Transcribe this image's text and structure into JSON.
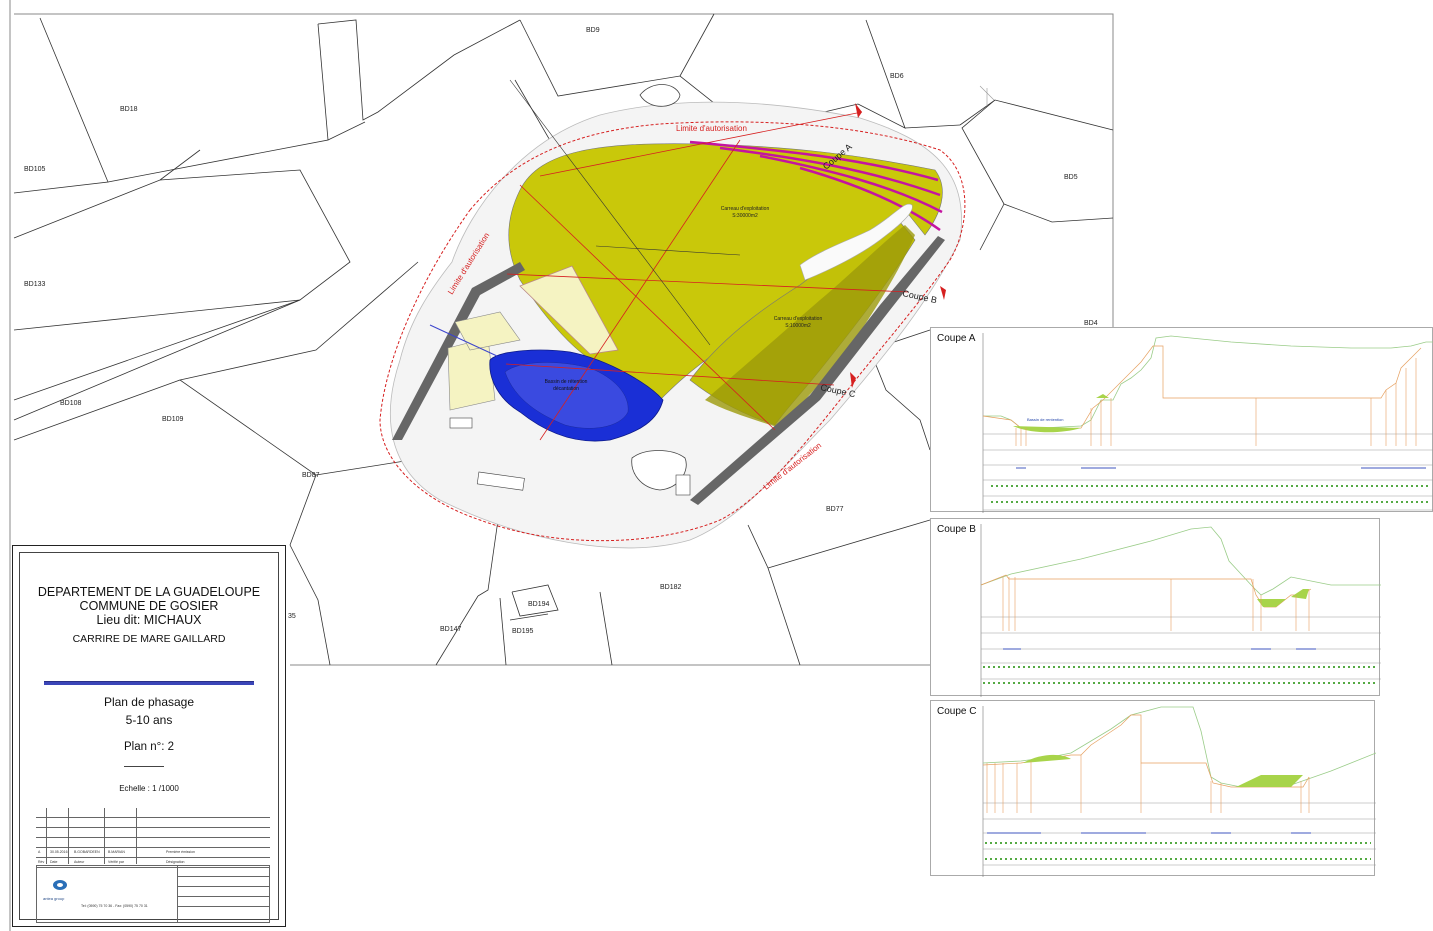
{
  "parcels": [
    "BD9",
    "BD6",
    "BD18",
    "BD105",
    "BD5",
    "BD133",
    "BD4",
    "BD108",
    "BD109",
    "BD87",
    "BD77",
    "BD182",
    "BD194",
    "BD147",
    "BD195",
    "35"
  ],
  "boundary": {
    "label_top": "Limite d'autorisation",
    "label_left": "Limite d'autorisation",
    "label_right": "Limite d'autorisation"
  },
  "zones": {
    "carreau1": {
      "line1": "Carreau d'exploitation",
      "line2": "S:30000m2"
    },
    "carreau2": {
      "line1": "Carreau d'exploitation",
      "line2": "S:10000m2"
    },
    "bassin": {
      "line1": "Bassin de rétention",
      "line2": "décantation"
    }
  },
  "coupes": [
    "Coupe A",
    "Coupe B",
    "Coupe C"
  ],
  "title_block": {
    "dept": "DEPARTEMENT DE LA GUADELOUPE",
    "commune": "COMMUNE DE GOSIER",
    "lieu": "Lieu dit: MICHAUX",
    "carriere": "CARRIRE DE MARE GAILLARD",
    "plan_title": "Plan de phasage",
    "periode": "5-10 ans",
    "plan_num": "Plan n°: 2",
    "echelle": "Echelle : 1 /1000",
    "revision": {
      "ind": "A",
      "date": "30.05.2016",
      "by": "B.GOBARDEEN",
      "checked": "B.MARIAN",
      "desc": "Première émission"
    },
    "columns": [
      "Rév",
      "Date",
      "Auteur",
      "Vérifié par",
      "Désignation"
    ],
    "company": "antea group",
    "phone": "Tel: (0590) 75 70 36 - Fax: (0590) 75 70 31"
  },
  "section_panels": [
    {
      "title": "Coupe A",
      "legend": "Bassin de rentention"
    },
    {
      "title": "Coupe B"
    },
    {
      "title": "Coupe C"
    }
  ],
  "colors": {
    "carreau": "#c9c80a",
    "bassin": "#1a2fd6",
    "limite": "#d62020",
    "piste": "#666666",
    "banquette": "#c414a0"
  }
}
